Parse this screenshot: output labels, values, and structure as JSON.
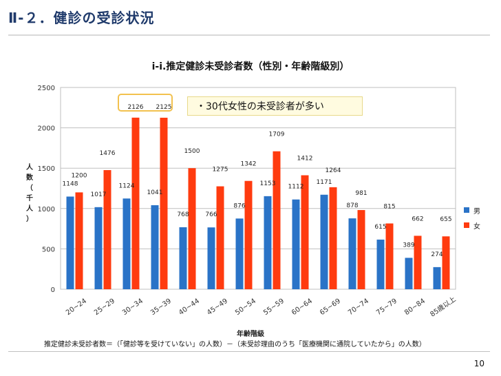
{
  "slide": {
    "title": "Ⅱ-２．健診の受診状況",
    "footnote": "推定健診未受診者数＝（「健診等を受けていない」の人数）－（未受診理由のうち「医療機関に通院していたから」の人数）",
    "page_number": "10",
    "callout": "・30代女性の未受診者が多い"
  },
  "colors": {
    "male": "#2a73c7",
    "female": "#ff3b0f",
    "highlight": "#f2c14e"
  },
  "chart_data": {
    "type": "bar",
    "title": "i-i.推定健診未受診者数（性別・年齢階級別）",
    "xlabel": "年齢階級",
    "ylabel": "人数（千人）",
    "ylim": [
      0,
      2500
    ],
    "yticks": [
      0,
      500,
      1000,
      1500,
      2000,
      2500
    ],
    "grid": true,
    "legend_position": "right",
    "categories": [
      "20~24",
      "25~29",
      "30~34",
      "35~39",
      "40~44",
      "45~49",
      "50~54",
      "55~59",
      "60~64",
      "65~69",
      "70~74",
      "75~79",
      "80~84",
      "85歳以上"
    ],
    "series": [
      {
        "name": "男",
        "values": [
          1148,
          1017,
          1124,
          1041,
          768,
          766,
          876,
          1153,
          1112,
          1171,
          878,
          615,
          389,
          274
        ]
      },
      {
        "name": "女",
        "values": [
          1200,
          1476,
          2126,
          2125,
          1500,
          1275,
          1342,
          1709,
          1412,
          1264,
          981,
          815,
          662,
          655
        ]
      }
    ],
    "highlighted_categories": [
      "30~34",
      "35~39"
    ]
  }
}
